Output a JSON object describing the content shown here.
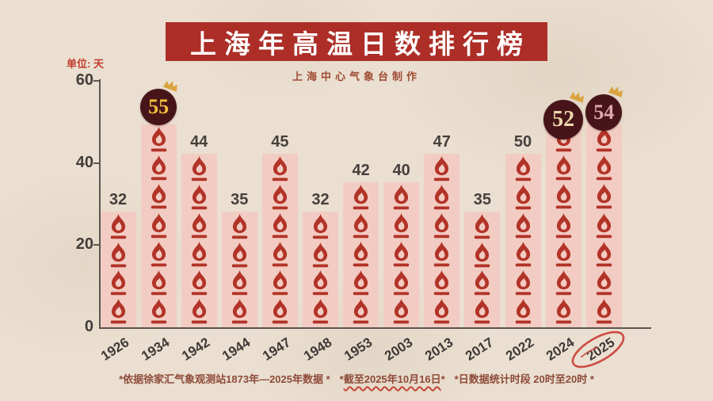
{
  "header": {
    "title": "上海年高温日数排行榜",
    "subtitle": "上海中心气象台制作"
  },
  "chart_data": {
    "type": "bar",
    "title": "上海年高温日数排行榜",
    "unit_label": "单位: 天",
    "categories": [
      "1926",
      "1934",
      "1942",
      "1944",
      "1947",
      "1948",
      "1953",
      "2003",
      "2013",
      "2017",
      "2022",
      "2024",
      "2025"
    ],
    "values": [
      32,
      55,
      44,
      35,
      45,
      32,
      42,
      40,
      47,
      35,
      50,
      52,
      54
    ],
    "ylim": [
      0,
      60
    ],
    "yticks": [
      0,
      20,
      40,
      60
    ],
    "grid": false,
    "bar_icon": "flame-icon",
    "badges": [
      {
        "category": "1934",
        "label": "55",
        "number_color": "#f1bf3b",
        "size": 46,
        "crown": true
      },
      {
        "category": "2024",
        "label": "52",
        "number_color": "#ecd8ad",
        "size": 50,
        "crown": true
      },
      {
        "category": "2025",
        "label": "54",
        "number_color": "#e2a7ae",
        "size": 46,
        "crown": true
      }
    ],
    "circled_category": "2025"
  },
  "footer": {
    "note1": "*依据徐家汇气象观测站1873年—2025年数据 *",
    "note2_prefix": "*",
    "note2_date": "截至2025年10月16日",
    "note2_suffix": "*",
    "note3": "*日数据统计时段 20时至20时 *"
  },
  "colors": {
    "paper": "#eadfd0",
    "banner": "#ac2e27",
    "bar_fill": "#f2ccc3",
    "flame": "#b23327",
    "badge_bg": "#471519",
    "crown": "#d9a43e",
    "circle_stroke": "#cc4a42",
    "axis": "#5c5550",
    "footer_text": "#8e4a39"
  }
}
